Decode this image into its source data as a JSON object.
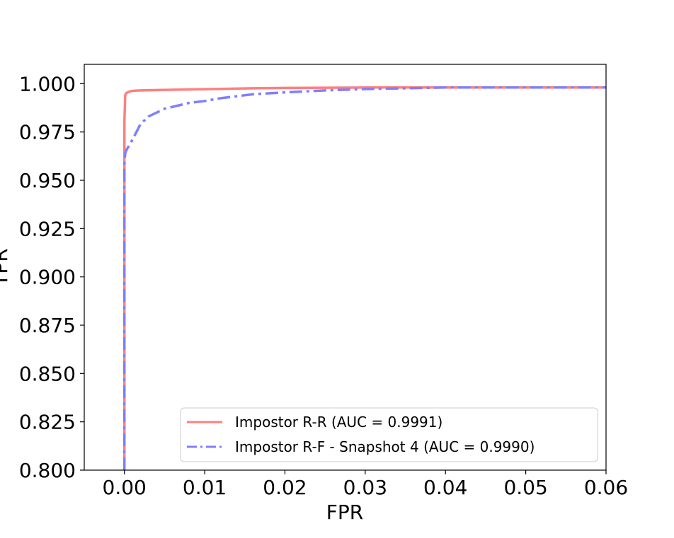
{
  "chart_data": {
    "type": "line",
    "title": "",
    "xlabel": "FPR",
    "ylabel": "TPR",
    "xlim": [
      -0.005,
      0.06
    ],
    "ylim": [
      0.8,
      1.01
    ],
    "x_ticks": [
      0.0,
      0.01,
      0.02,
      0.03,
      0.04,
      0.05,
      0.06
    ],
    "x_tick_labels": [
      "0.00",
      "0.01",
      "0.02",
      "0.03",
      "0.04",
      "0.05",
      "0.06"
    ],
    "y_ticks": [
      0.8,
      0.825,
      0.85,
      0.875,
      0.9,
      0.925,
      0.95,
      0.975,
      1.0
    ],
    "y_tick_labels": [
      "0.800",
      "0.825",
      "0.850",
      "0.875",
      "0.900",
      "0.925",
      "0.950",
      "0.975",
      "1.000"
    ],
    "grid": false,
    "legend_position": "lower-right",
    "series": [
      {
        "name": "Impostor R-R (AUC = 0.9991)",
        "color": "#ff7f7f",
        "style": "solid",
        "x": [
          0.0,
          0.0,
          0.0,
          0.0001,
          0.0002,
          0.0004,
          0.0007,
          0.001,
          0.002,
          0.004,
          0.008,
          0.012,
          0.016,
          0.02,
          0.03,
          0.04,
          0.06
        ],
        "y": [
          0.8,
          0.95,
          0.98,
          0.994,
          0.995,
          0.9955,
          0.996,
          0.9963,
          0.9965,
          0.9967,
          0.997,
          0.9973,
          0.9976,
          0.9978,
          0.998,
          0.998,
          0.998
        ]
      },
      {
        "name": "Impostor R-F - Snapshot 4 (AUC = 0.9990)",
        "color": "#7f7fff",
        "style": "dashdot",
        "x": [
          0.0,
          0.0,
          0.0001,
          0.0003,
          0.0006,
          0.001,
          0.0015,
          0.002,
          0.003,
          0.004,
          0.005,
          0.006,
          0.008,
          0.01,
          0.012,
          0.014,
          0.016,
          0.018,
          0.02,
          0.025,
          0.03,
          0.04,
          0.05,
          0.06
        ],
        "y": [
          0.8,
          0.958,
          0.964,
          0.966,
          0.968,
          0.971,
          0.975,
          0.979,
          0.983,
          0.985,
          0.987,
          0.988,
          0.99,
          0.991,
          0.9925,
          0.9935,
          0.9945,
          0.995,
          0.9955,
          0.9965,
          0.9972,
          0.998,
          0.998,
          0.998
        ]
      }
    ]
  }
}
